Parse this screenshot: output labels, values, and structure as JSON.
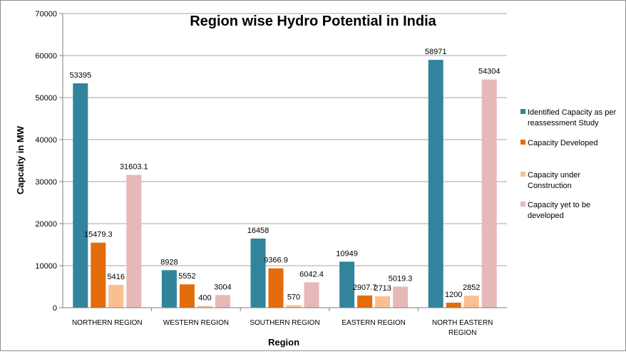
{
  "chart_data": {
    "type": "bar",
    "title": "Region wise Hydro Potential in India",
    "xlabel": "Region",
    "ylabel": "Capcaity in MW",
    "ylim": [
      0,
      70000
    ],
    "yticks": [
      "0",
      "10000",
      "20000",
      "30000",
      "40000",
      "50000",
      "60000",
      "70000"
    ],
    "grid": true,
    "legend_position": "right",
    "categories": [
      [
        "NORTHERN REGION"
      ],
      [
        "WESTERN REGION"
      ],
      [
        "SOUTHERN REGION"
      ],
      [
        "EASTERN REGION"
      ],
      [
        "NORTH EASTERN",
        "REGION"
      ]
    ],
    "series": [
      {
        "name": [
          "Identified Capacity as per",
          "reassessment Study"
        ],
        "color": "#31849b",
        "values": [
          53395,
          8928,
          16458,
          10949,
          58971
        ],
        "labels": [
          "53395",
          "8928",
          "16458",
          "10949",
          "58971"
        ]
      },
      {
        "name": [
          "Capacity Developed"
        ],
        "color": "#e46c0a",
        "values": [
          15479.3,
          5552,
          9366.9,
          2907.7,
          1200
        ],
        "labels": [
          "15479.3",
          "5552",
          "9366.9",
          "2907.7",
          "1200"
        ]
      },
      {
        "name": [
          "Capacity under",
          "Construction"
        ],
        "color": "#fabf8f",
        "values": [
          5416,
          400,
          570,
          2713,
          2852
        ],
        "labels": [
          "5416",
          "400",
          "570",
          "2713",
          "2852"
        ]
      },
      {
        "name": [
          "Capacity yet to be",
          "developed"
        ],
        "color": "#e6b9b8",
        "values": [
          31603.1,
          3004,
          6042.4,
          5019.3,
          54304
        ],
        "labels": [
          "31603.1",
          "3004",
          "6042.4",
          "5019.3",
          "54304"
        ]
      }
    ]
  }
}
